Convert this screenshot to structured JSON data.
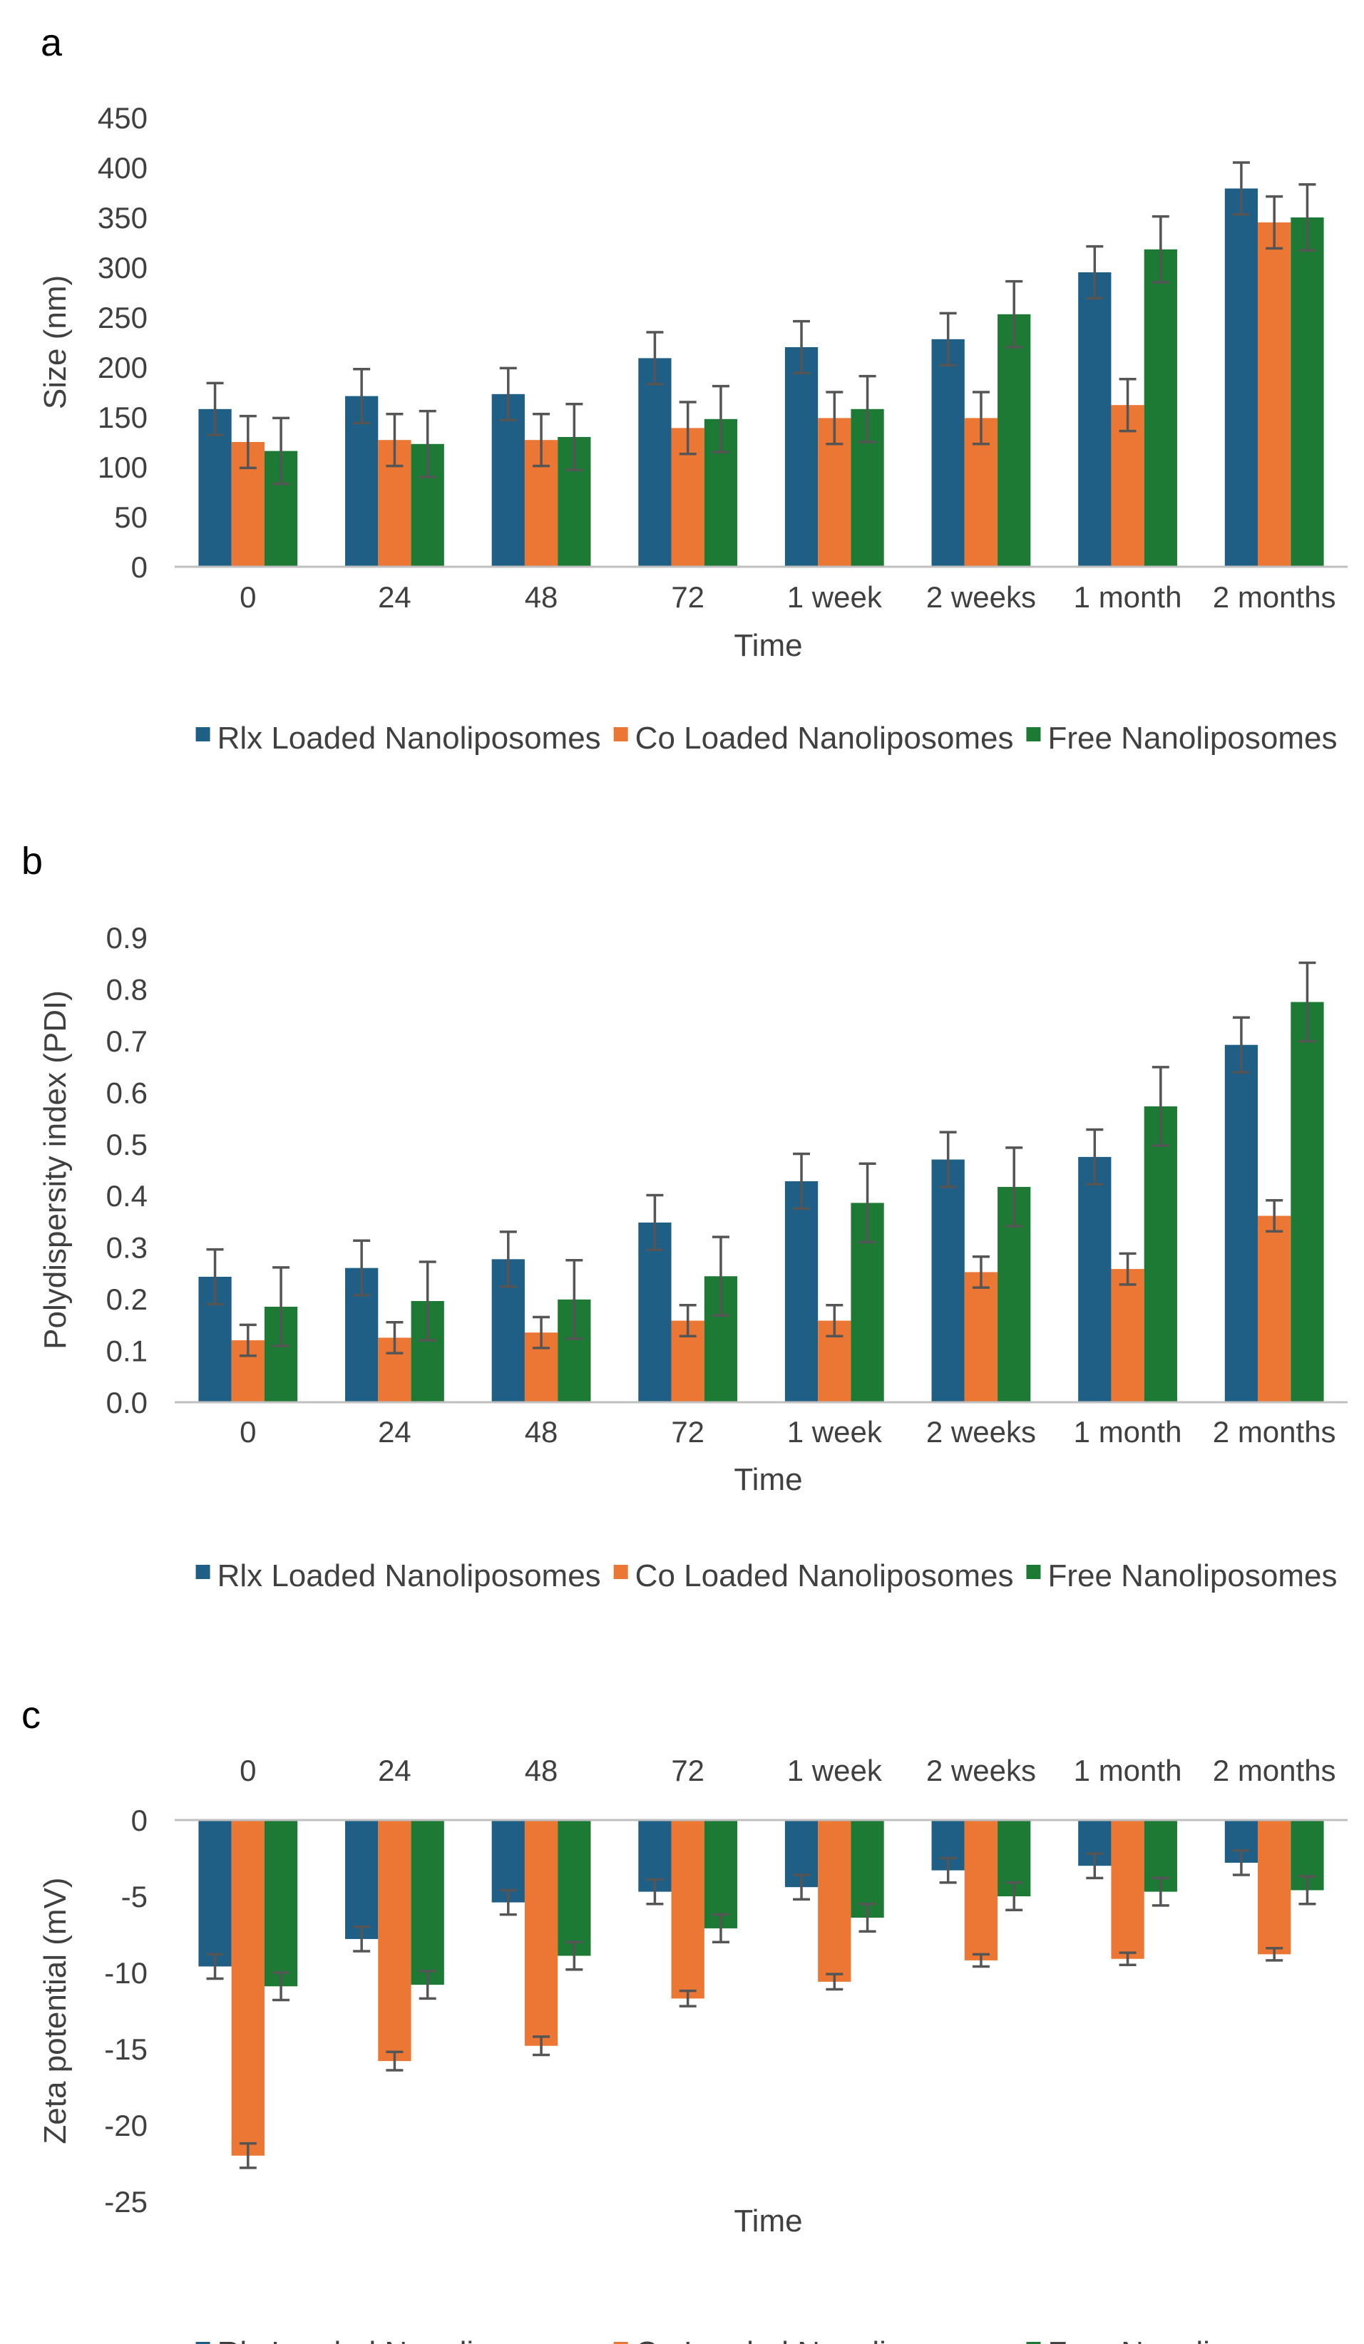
{
  "colors": {
    "rlx": "#1f5f86",
    "co": "#ec7634",
    "free": "#1d7a34",
    "axis": "#bfbfbf",
    "error": "#555555",
    "text": "#404040"
  },
  "chart_data": [
    {
      "type": "bar",
      "panel": "a",
      "xlabel": "Time",
      "ylabel": "Size (nm)",
      "ylim": [
        0,
        450
      ],
      "yticks": [
        "0",
        "50",
        "100",
        "150",
        "200",
        "250",
        "300",
        "350",
        "400",
        "450"
      ],
      "ytick_values": [
        0,
        50,
        100,
        150,
        200,
        250,
        300,
        350,
        400,
        450
      ],
      "categories": [
        "0",
        "24",
        "48",
        "72",
        "1 week",
        "2 weeks",
        "1 month",
        "2 months"
      ],
      "x_labels_position": "bottom",
      "legend_position": "bottom",
      "series": [
        {
          "name": "Rlx Loaded Nanoliposomes",
          "color_key": "rlx",
          "values": [
            158,
            171,
            173,
            209,
            220,
            228,
            295,
            379
          ],
          "errors": [
            26,
            27,
            26,
            26,
            26,
            26,
            26,
            26
          ]
        },
        {
          "name": "Co Loaded Nanoliposomes",
          "color_key": "co",
          "values": [
            125,
            127,
            127,
            139,
            149,
            149,
            162,
            345
          ],
          "errors": [
            26,
            26,
            26,
            26,
            26,
            26,
            26,
            26
          ]
        },
        {
          "name": "Free Nanoliposomes",
          "color_key": "free",
          "values": [
            116,
            123,
            130,
            148,
            158,
            253,
            318,
            350
          ],
          "errors": [
            33,
            33,
            33,
            33,
            33,
            33,
            33,
            33
          ]
        }
      ]
    },
    {
      "type": "bar",
      "panel": "b",
      "xlabel": "Time",
      "ylabel": "Polydispersity index (PDI)",
      "ylim": [
        0,
        0.9
      ],
      "yticks": [
        "0.0",
        "0.1",
        "0.2",
        "0.3",
        "0.4",
        "0.5",
        "0.6",
        "0.7",
        "0.8",
        "0.9"
      ],
      "ytick_values": [
        0,
        0.1,
        0.2,
        0.3,
        0.4,
        0.5,
        0.6,
        0.7,
        0.8,
        0.9
      ],
      "categories": [
        "0",
        "24",
        "48",
        "72",
        "1 week",
        "2 weeks",
        "1 month",
        "2 months"
      ],
      "x_labels_position": "bottom",
      "legend_position": "bottom",
      "series": [
        {
          "name": "Rlx Loaded Nanoliposomes",
          "color_key": "rlx",
          "values": [
            0.243,
            0.26,
            0.277,
            0.348,
            0.428,
            0.47,
            0.475,
            0.692
          ],
          "errors": [
            0.053,
            0.053,
            0.053,
            0.053,
            0.053,
            0.053,
            0.053,
            0.053
          ]
        },
        {
          "name": "Co Loaded Nanoliposomes",
          "color_key": "co",
          "values": [
            0.12,
            0.125,
            0.135,
            0.158,
            0.158,
            0.252,
            0.258,
            0.361
          ],
          "errors": [
            0.03,
            0.03,
            0.03,
            0.03,
            0.03,
            0.03,
            0.03,
            0.03
          ]
        },
        {
          "name": "Free Nanoliposomes",
          "color_key": "free",
          "values": [
            0.185,
            0.196,
            0.199,
            0.244,
            0.386,
            0.417,
            0.573,
            0.775
          ],
          "errors": [
            0.076,
            0.076,
            0.076,
            0.076,
            0.076,
            0.076,
            0.076,
            0.076
          ]
        }
      ]
    },
    {
      "type": "bar",
      "panel": "c",
      "xlabel": "Time",
      "ylabel": "Zeta potential (mV)",
      "ylim": [
        -25,
        0
      ],
      "yticks": [
        "-25",
        "-20",
        "-15",
        "-10",
        "-5",
        "0"
      ],
      "ytick_values": [
        -25,
        -20,
        -15,
        -10,
        -5,
        0
      ],
      "categories": [
        "0",
        "24",
        "48",
        "72",
        "1 week",
        "2 weeks",
        "1 month",
        "2 months"
      ],
      "x_labels_position": "top",
      "legend_position": "bottom",
      "series": [
        {
          "name": "Rlx Loaded Nanoliposomes",
          "color_key": "rlx",
          "values": [
            -9.6,
            -7.8,
            -5.4,
            -4.7,
            -4.4,
            -3.3,
            -3.0,
            -2.8
          ],
          "errors": [
            0.8,
            0.8,
            0.8,
            0.8,
            0.8,
            0.8,
            0.8,
            0.8
          ]
        },
        {
          "name": "Co Loaded Nanoliposomes",
          "color_key": "co",
          "values": [
            -22.0,
            -15.8,
            -14.8,
            -11.7,
            -10.6,
            -9.2,
            -9.1,
            -8.8
          ],
          "errors": [
            0.8,
            0.6,
            0.6,
            0.5,
            0.5,
            0.4,
            0.4,
            0.4
          ]
        },
        {
          "name": "Free Nanoliposomes",
          "color_key": "free",
          "values": [
            -10.9,
            -10.8,
            -8.9,
            -7.1,
            -6.4,
            -5.0,
            -4.7,
            -4.6
          ],
          "errors": [
            0.9,
            0.9,
            0.9,
            0.9,
            0.9,
            0.9,
            0.9,
            0.9
          ]
        }
      ]
    }
  ]
}
